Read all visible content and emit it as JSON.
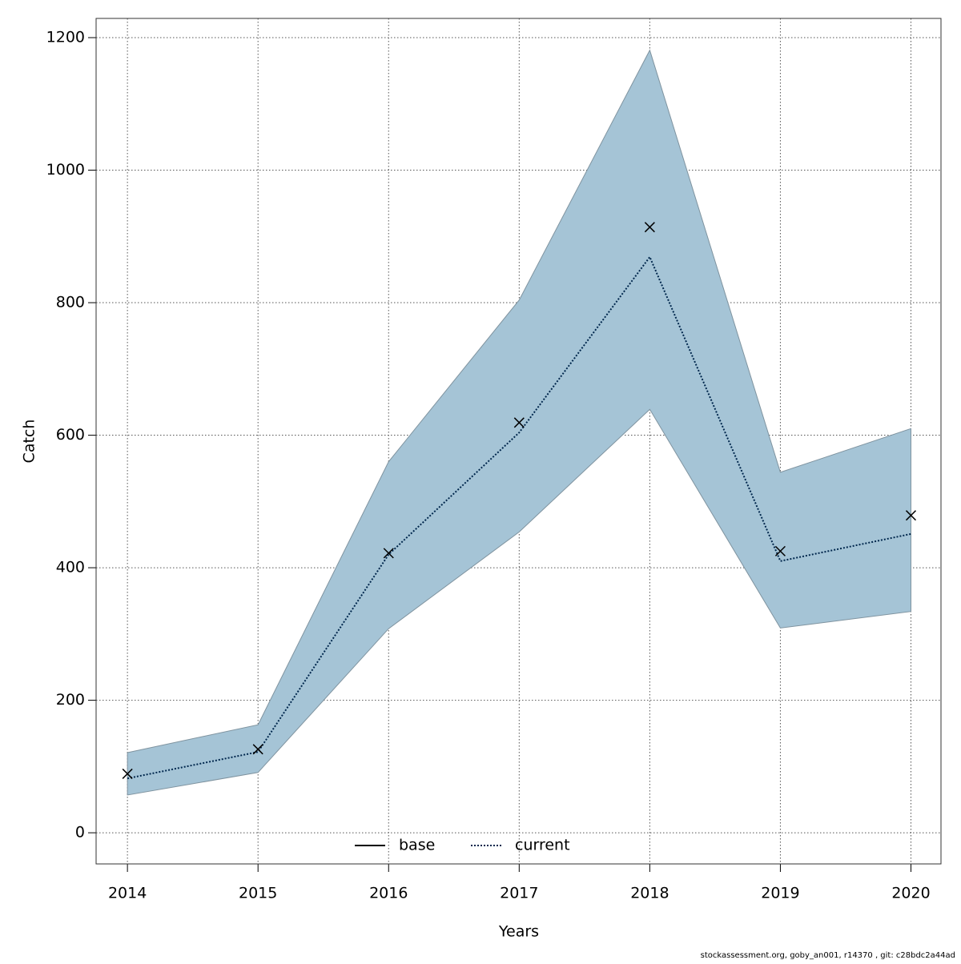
{
  "chart_data": {
    "type": "line",
    "xlabel": "Years",
    "ylabel": "Catch",
    "footer": "stockassessment.org, goby_an001, r14370 , git: c28bdc2a44ad",
    "x": [
      2014,
      2015,
      2016,
      2017,
      2018,
      2019,
      2020
    ],
    "band": {
      "color": "#a5c4d6",
      "upper": [
        121,
        163,
        560,
        804,
        1181,
        544,
        610
      ],
      "lower": [
        57,
        91,
        308,
        454,
        639,
        309,
        334
      ]
    },
    "series": [
      {
        "name": "base",
        "color": "#000000",
        "style": "solid"
      },
      {
        "name": "current",
        "color": "#00274d",
        "style": "dotted",
        "values": [
          82,
          122,
          420,
          604,
          869,
          410,
          451
        ]
      }
    ],
    "observed": {
      "color": "#000000",
      "values": [
        89,
        126,
        422,
        619,
        914,
        425,
        479
      ]
    },
    "xlim": [
      2013.76,
      2020.23
    ],
    "ylim": [
      -47,
      1229
    ],
    "xticks": [
      2014,
      2015,
      2016,
      2017,
      2018,
      2019,
      2020
    ],
    "yticks": [
      0,
      200,
      400,
      600,
      800,
      1000,
      1200
    ],
    "grid": true
  }
}
